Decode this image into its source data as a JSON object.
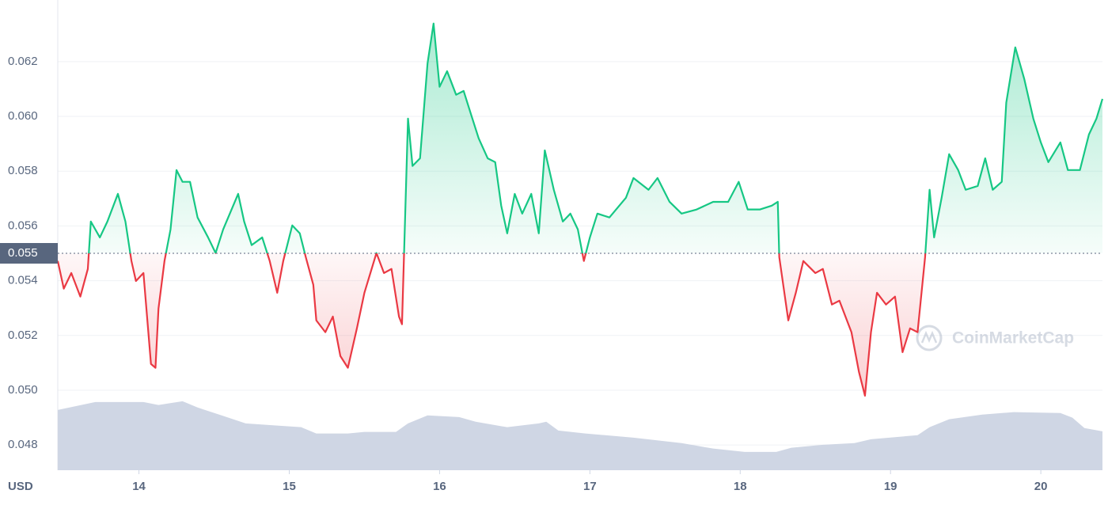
{
  "chart_data": {
    "type": "line",
    "x_label": "USD",
    "watermark": "CoinMarketCap",
    "xlim": [
      13.46,
      20.41
    ],
    "xticks": [
      14,
      15,
      16,
      17,
      18,
      19,
      20
    ],
    "ylim": [
      0.04708,
      0.06425
    ],
    "yticks": [
      0.048,
      {
        "value": 0.05,
        "label": "0.050"
      },
      0.052,
      0.054,
      0.056,
      0.058,
      {
        "value": 0.06,
        "label": "0.060"
      },
      0.062
    ],
    "grid": true,
    "baseline": 0.055,
    "up_color": "#16c784",
    "down_color": "#ea3943",
    "series": [
      {
        "x": [
          13.46,
          13.5,
          13.55,
          13.61,
          13.66,
          13.68,
          13.74,
          13.79,
          13.86,
          13.91,
          13.95,
          13.98,
          14.03,
          14.08,
          14.11,
          14.13,
          14.17,
          14.21,
          14.25,
          14.29,
          14.34,
          14.39,
          14.46,
          14.51,
          14.56,
          14.66,
          14.7,
          14.75,
          14.82,
          14.87,
          14.92,
          14.96,
          15.02,
          15.07,
          15.11,
          15.16,
          15.18,
          15.24,
          15.29,
          15.34,
          15.39,
          15.45,
          15.5,
          15.58,
          15.63,
          15.68,
          15.73,
          15.75,
          15.79,
          15.82,
          15.87,
          15.92,
          15.96,
          16.0,
          16.05,
          16.11,
          16.16,
          16.21,
          16.26,
          16.32,
          16.37,
          16.41,
          16.45,
          16.5,
          16.55,
          16.61,
          16.66,
          16.7,
          16.76,
          16.82,
          16.87,
          16.92,
          16.96,
          17.0,
          17.05,
          17.13,
          17.24,
          17.29,
          17.39,
          17.45,
          17.53,
          17.61,
          17.71,
          17.82,
          17.92,
          17.99,
          18.05,
          18.13,
          18.21,
          18.25,
          18.26,
          18.32,
          18.37,
          18.42,
          18.5,
          18.55,
          18.61,
          18.66,
          18.74,
          18.79,
          18.83,
          18.87,
          18.91,
          18.97,
          19.03,
          19.08,
          19.13,
          19.18,
          19.23,
          19.26,
          19.29,
          19.34,
          19.39,
          19.45,
          19.5,
          19.58,
          19.63,
          19.68,
          19.74,
          19.77,
          19.83,
          19.89,
          19.95,
          20.0,
          20.05,
          20.13,
          20.18,
          20.26,
          20.32,
          20.37,
          20.41
        ],
        "values": [
          0.05472,
          0.05371,
          0.05428,
          0.05342,
          0.05443,
          0.05616,
          0.05558,
          0.05616,
          0.05717,
          0.05616,
          0.05472,
          0.05399,
          0.05428,
          0.05096,
          0.05082,
          0.05298,
          0.05472,
          0.05587,
          0.05804,
          0.05761,
          0.05761,
          0.05631,
          0.05558,
          0.05501,
          0.05587,
          0.05717,
          0.05616,
          0.0553,
          0.05558,
          0.05472,
          0.05356,
          0.05472,
          0.05602,
          0.05573,
          0.05486,
          0.05385,
          0.05255,
          0.05212,
          0.05269,
          0.05125,
          0.05082,
          0.05226,
          0.05356,
          0.05501,
          0.05428,
          0.05443,
          0.05269,
          0.05241,
          0.05992,
          0.05819,
          0.05847,
          0.06194,
          0.06339,
          0.06108,
          0.06165,
          0.06079,
          0.06093,
          0.06006,
          0.0592,
          0.05847,
          0.05833,
          0.05674,
          0.05573,
          0.05717,
          0.05645,
          0.05717,
          0.05573,
          0.05876,
          0.05732,
          0.05616,
          0.05645,
          0.05587,
          0.05472,
          0.05558,
          0.05645,
          0.05631,
          0.05703,
          0.05775,
          0.05732,
          0.05775,
          0.05688,
          0.05645,
          0.0566,
          0.05688,
          0.05688,
          0.05761,
          0.0566,
          0.0566,
          0.05674,
          0.05688,
          0.05486,
          0.05255,
          0.05356,
          0.05472,
          0.05428,
          0.05443,
          0.05313,
          0.05327,
          0.05212,
          0.05067,
          0.0498,
          0.05212,
          0.05356,
          0.05313,
          0.05342,
          0.05139,
          0.05226,
          0.05212,
          0.05486,
          0.05732,
          0.05558,
          0.05703,
          0.05862,
          0.05804,
          0.05732,
          0.05746,
          0.05847,
          0.05732,
          0.05761,
          0.0605,
          0.06252,
          0.06136,
          0.05992,
          0.05905,
          0.05833,
          0.05905,
          0.05804,
          0.05804,
          0.05934,
          0.05992,
          0.06064
        ]
      }
    ],
    "volume": {
      "color": "#cfd6e4",
      "x": [
        13.46,
        13.71,
        14.03,
        14.13,
        14.29,
        14.39,
        14.55,
        14.71,
        14.92,
        15.08,
        15.18,
        15.39,
        15.5,
        15.71,
        15.79,
        15.92,
        16.13,
        16.24,
        16.45,
        16.66,
        16.71,
        16.79,
        16.97,
        17.29,
        17.61,
        17.82,
        18.03,
        18.24,
        18.34,
        18.55,
        18.76,
        18.87,
        19.18,
        19.26,
        19.39,
        19.61,
        19.82,
        20.13,
        20.21,
        20.29,
        20.41
      ],
      "values": [
        0.04928,
        0.04957,
        0.04957,
        0.04946,
        0.0496,
        0.04937,
        0.04908,
        0.04879,
        0.04871,
        0.04865,
        0.04842,
        0.04842,
        0.04848,
        0.04848,
        0.04879,
        0.04908,
        0.04902,
        0.04885,
        0.04865,
        0.04879,
        0.04885,
        0.04853,
        0.04842,
        0.04827,
        0.04807,
        0.04787,
        0.04775,
        0.04775,
        0.0479,
        0.04801,
        0.04807,
        0.04821,
        0.04836,
        0.04865,
        0.04894,
        0.04911,
        0.0492,
        0.04917,
        0.049,
        0.04862,
        0.0485
      ]
    }
  }
}
